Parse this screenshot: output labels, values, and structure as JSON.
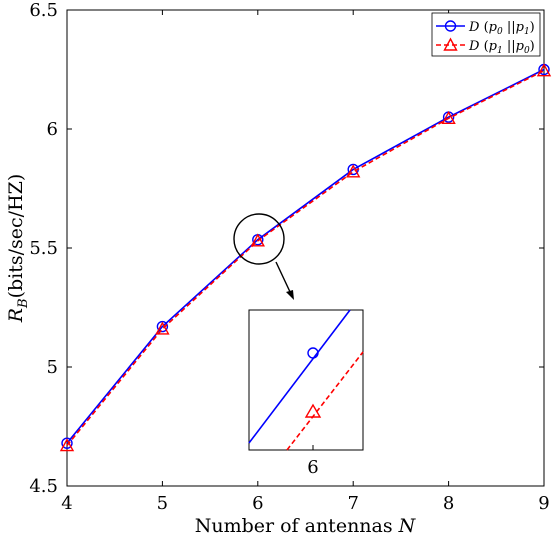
{
  "chart_data": {
    "type": "line",
    "x": [
      4,
      5,
      6,
      7,
      8,
      9
    ],
    "xticks": [
      "4",
      "5",
      "6",
      "7",
      "8",
      "9"
    ],
    "yticks": [
      "4.5",
      "5",
      "5.5",
      "6",
      "6.5"
    ],
    "xlim": [
      4,
      9
    ],
    "ylim": [
      4.5,
      6.5
    ],
    "xlabel": "Number of antennas N",
    "ylabel": "R_B (bits/sec/HZ)",
    "grid": false,
    "legend_position": "top-right",
    "series": [
      {
        "name": "D (p0 || p1)",
        "color": "#0000ff",
        "marker": "circle",
        "linestyle": "solid",
        "values": [
          4.68,
          5.17,
          5.535,
          5.83,
          6.05,
          6.25
        ]
      },
      {
        "name": "D (p1 || p0)",
        "color": "#ff0000",
        "marker": "triangle",
        "linestyle": "dashed",
        "values": [
          4.67,
          5.16,
          5.53,
          5.82,
          6.045,
          6.245
        ]
      }
    ],
    "inset": {
      "zoom_center": [
        6,
        5.535
      ],
      "xtick": "6",
      "blue_point_value": 5.535,
      "red_point_value": 5.53
    }
  }
}
